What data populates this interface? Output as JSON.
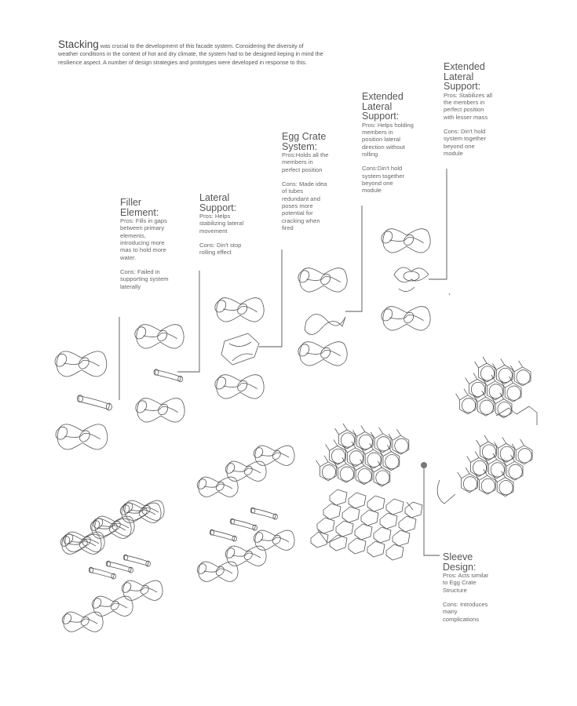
{
  "intro": {
    "lead": "Stacking",
    "text": " was crucial to the development of this facade system. Considering the diversity of weather conditions in the context of hot and dry climate, the system had to be designed keping in mind the resilience aspect. A number of design strategies and prototypes were developed in response to this."
  },
  "labels": {
    "filler": {
      "title": "Filler\nElement:",
      "pros": "Pros: Fills in gaps\nbetween primary\nelements,\nintroducing more\nmas to hold more\nwater.",
      "cons": "Cons: Failed in\nsupporting system\nlaterally"
    },
    "lateral": {
      "title": "Lateral\nSupport:",
      "pros": "Pros: Helps\nstabilizing lateral\nmovement",
      "cons": "Cons: Din't stop\nrolling effect"
    },
    "egg": {
      "title": "Egg Crate\nSystem:",
      "pros": "Pros:Holds all the\nmembers in\nperfect position",
      "cons": "Cons: Made idea\nof tubes\nredundant and\nposes more\npotential for\ncracking when\nfired"
    },
    "ext1": {
      "title": "Extended\nLateral\nSupport:",
      "pros": "Pros: Helps holding\nmembers in\nposition lateral\ndirection without\nrolling",
      "cons": "Cons:Din't hold\nsystem together\nbeyond one\nmodule"
    },
    "ext2": {
      "title": "Extended\nLateral\nSupport:",
      "pros": "Pros: Stabilizes all\nthe members in\nperfect position\nwith lesser mass",
      "cons": "Cons: Din't hold\nsystem together\nbeyond one\nmodule"
    },
    "sleeve": {
      "title": "Sleeve\nDesign:",
      "pros": "Pros: Acts similar\nto Egg Crate\nStructure",
      "cons": "Cons: Introduces\nmany\ncomplications"
    }
  },
  "colors": {
    "line": "#555555",
    "text": "#666666",
    "dot": "#777777"
  }
}
